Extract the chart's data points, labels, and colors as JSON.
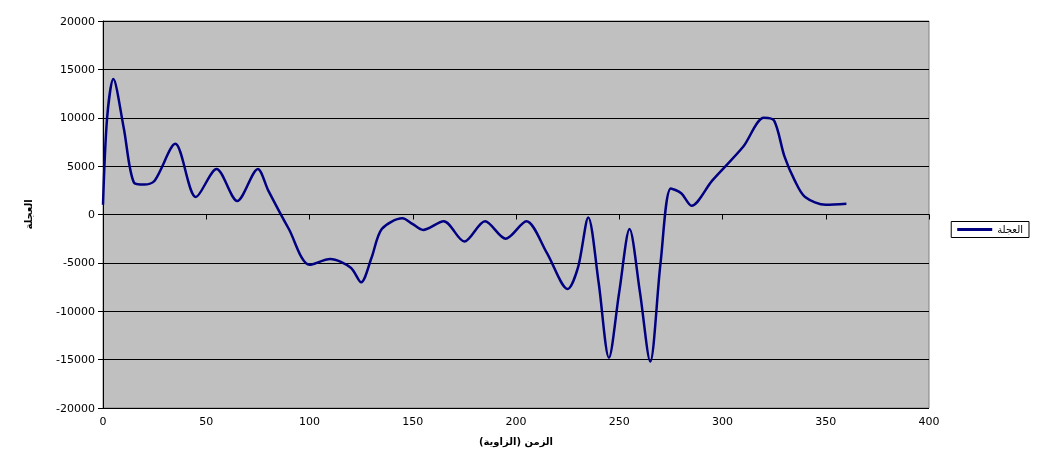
{
  "chart_data": {
    "type": "line",
    "xlabel": "الزمن (الزاوية)",
    "ylabel": "العجلة",
    "xlim": [
      0,
      400
    ],
    "xticks": [
      0,
      50,
      100,
      150,
      200,
      250,
      300,
      350,
      400
    ],
    "ylim": [
      -20000,
      20000
    ],
    "yticks": [
      -20000,
      -15000,
      -10000,
      -5000,
      0,
      5000,
      10000,
      15000,
      20000
    ],
    "grid": "y",
    "legend": "right",
    "marker": "none",
    "series": [
      {
        "name": "العجلة",
        "color": "#000080",
        "x": [
          0,
          2,
          5,
          10,
          15,
          20,
          25,
          35,
          45,
          55,
          65,
          75,
          80,
          90,
          100,
          110,
          120,
          125,
          130,
          135,
          145,
          150,
          155,
          165,
          175,
          185,
          195,
          205,
          215,
          225,
          230,
          235,
          240,
          245,
          250,
          255,
          260,
          265,
          270,
          275,
          280,
          285,
          295,
          310,
          320,
          325,
          330,
          335,
          340,
          350,
          360
        ],
        "values": [
          1000,
          10000,
          14000,
          9000,
          3300,
          3100,
          3500,
          7300,
          1800,
          4700,
          1400,
          4700,
          2500,
          -1500,
          -5200,
          -4600,
          -5500,
          -7000,
          -4500,
          -1500,
          -400,
          -1000,
          -1600,
          -700,
          -2800,
          -700,
          -2500,
          -700,
          -4000,
          -7700,
          -5500,
          -300,
          -7000,
          -14800,
          -8000,
          -1500,
          -8000,
          -15200,
          -5000,
          2700,
          2200,
          900,
          3500,
          7000,
          10000,
          9700,
          6000,
          3500,
          1800,
          1000,
          1100
        ]
      }
    ]
  }
}
